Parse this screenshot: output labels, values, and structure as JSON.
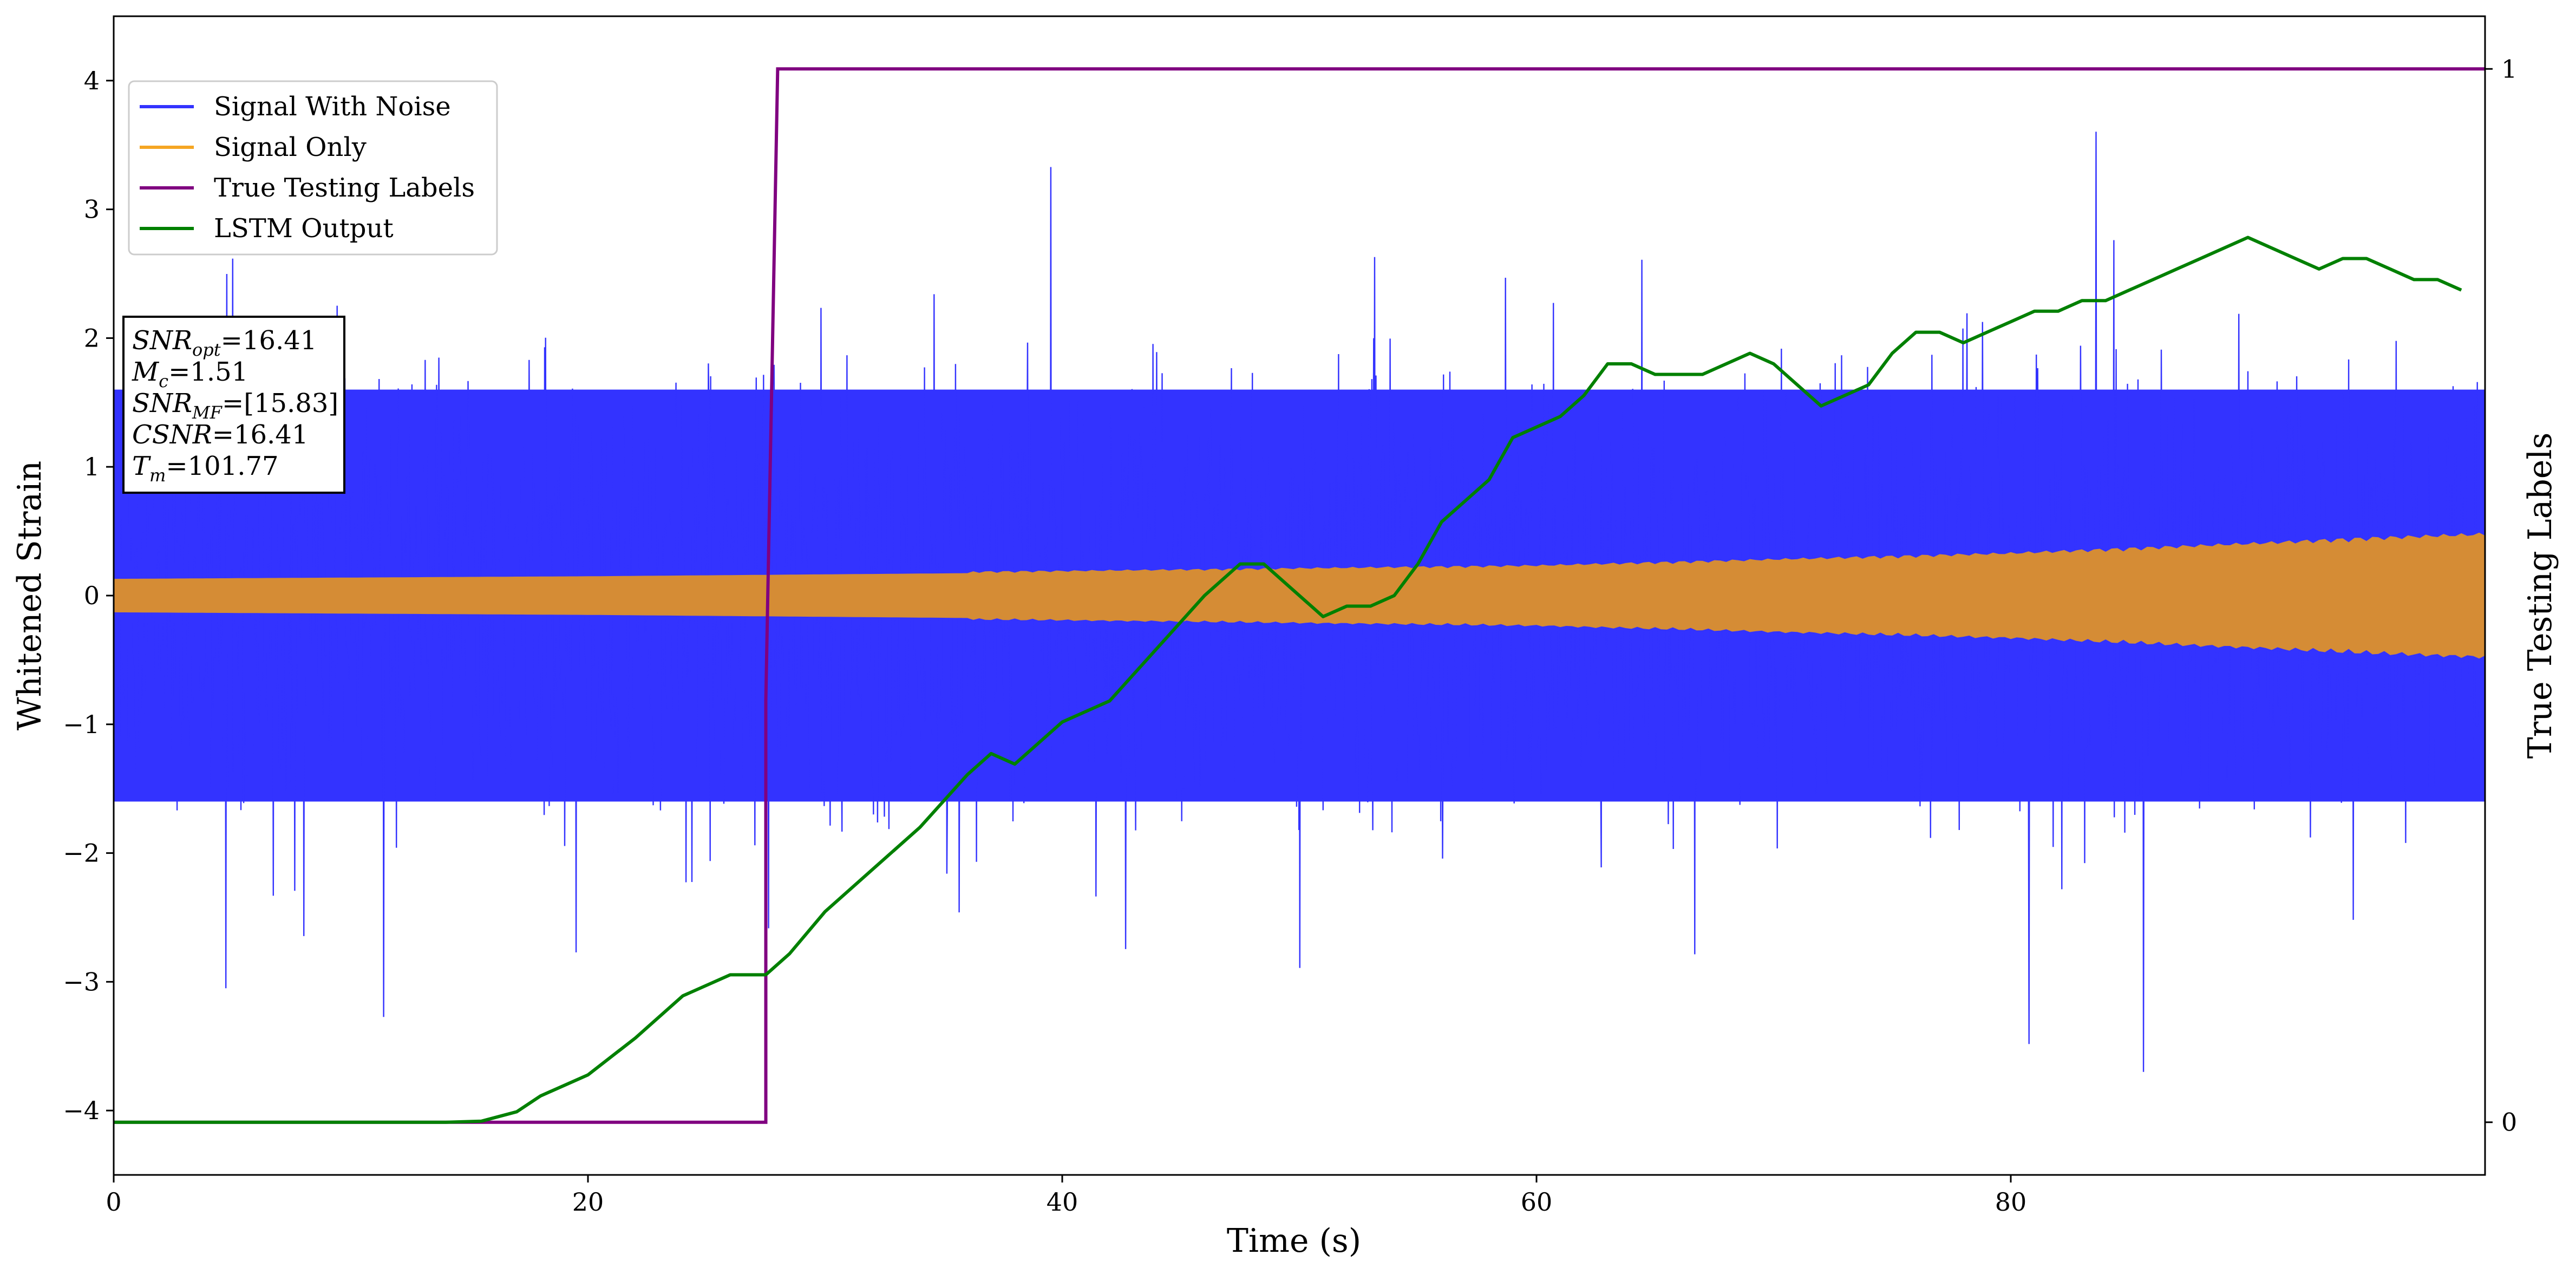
{
  "chart_data": {
    "type": "line",
    "xlabel": "Time (s)",
    "ylabel": "Whitened Strain",
    "y2label": "True Testing Labels",
    "xlim": [
      0,
      100
    ],
    "ylim": [
      -4.5,
      4.5
    ],
    "y2lim": [
      -0.05,
      1.05
    ],
    "x_ticks": [
      0,
      20,
      40,
      60,
      80
    ],
    "x_tick_labels": [
      "0",
      "20",
      "40",
      "60",
      "80"
    ],
    "y_ticks": [
      -4,
      -3,
      -2,
      -1,
      0,
      1,
      2,
      3,
      4
    ],
    "y_tick_labels": [
      "−4",
      "−3",
      "−2",
      "−1",
      "0",
      "1",
      "2",
      "3",
      "4"
    ],
    "y2_ticks": [
      0,
      1
    ],
    "y2_tick_labels": [
      "0",
      "1"
    ],
    "grid": false,
    "legend_position": "top-left",
    "series": [
      {
        "name": "Signal With Noise",
        "color": "#3333ff",
        "axis": "left",
        "style": "noise",
        "core_std": 0.55,
        "envelope_min": [
          -1.6,
          1.6
        ],
        "envelope_extremes": [
          -3.7,
          3.9
        ],
        "note_range": "approximately -3.7 to 3.9"
      },
      {
        "name": "Signal Only",
        "color": "#d58c35",
        "axis": "left",
        "style": "chirp-envelope",
        "x": [
          0,
          20,
          40,
          60,
          80,
          90,
          95,
          100
        ],
        "amplitude": [
          0.13,
          0.15,
          0.18,
          0.22,
          0.31,
          0.38,
          0.42,
          0.45
        ]
      },
      {
        "name": "True Testing Labels",
        "color": "#800080",
        "axis": "right",
        "x": [
          0,
          27.5,
          27.5,
          28.0,
          100
        ],
        "values": [
          0,
          0,
          0.4,
          1,
          1
        ]
      },
      {
        "name": "LSTM Output",
        "color": "#008000",
        "axis": "right",
        "x": [
          0,
          14,
          15.5,
          17,
          18,
          20,
          22,
          24,
          26,
          27.5,
          28.5,
          30,
          32,
          34,
          36,
          37,
          38,
          40,
          42,
          44,
          46,
          47.5,
          48.5,
          50,
          51,
          52,
          53,
          54,
          55,
          56,
          57,
          58,
          59,
          60,
          61,
          62,
          63,
          64,
          65,
          66,
          67,
          68,
          69,
          70,
          71,
          72,
          73,
          74,
          75,
          76,
          77,
          78,
          79,
          80,
          81,
          82,
          83,
          84,
          85,
          86,
          87,
          88,
          89,
          90,
          91,
          92,
          93,
          94,
          95,
          96,
          97,
          98,
          99
        ],
        "values": [
          0,
          0,
          0.001,
          0.01,
          0.025,
          0.045,
          0.08,
          0.12,
          0.14,
          0.14,
          0.16,
          0.2,
          0.24,
          0.28,
          0.33,
          0.35,
          0.34,
          0.38,
          0.4,
          0.45,
          0.5,
          0.53,
          0.53,
          0.5,
          0.48,
          0.49,
          0.49,
          0.5,
          0.53,
          0.57,
          0.59,
          0.61,
          0.65,
          0.66,
          0.67,
          0.69,
          0.72,
          0.72,
          0.71,
          0.71,
          0.71,
          0.72,
          0.73,
          0.72,
          0.7,
          0.68,
          0.69,
          0.7,
          0.73,
          0.75,
          0.75,
          0.74,
          0.75,
          0.76,
          0.77,
          0.77,
          0.78,
          0.78,
          0.79,
          0.8,
          0.81,
          0.82,
          0.83,
          0.84,
          0.83,
          0.82,
          0.81,
          0.82,
          0.82,
          0.81,
          0.8,
          0.8,
          0.79
        ]
      }
    ]
  },
  "legend": {
    "items": [
      {
        "label": "Signal With Noise",
        "color": "#3333ff"
      },
      {
        "label": "Signal Only",
        "color": "#f5a623"
      },
      {
        "label": "True Testing Labels",
        "color": "#800080"
      },
      {
        "label": "LSTM Output",
        "color": "#008000"
      }
    ]
  },
  "annotation": {
    "lines": [
      {
        "main": "SNR",
        "sub": "opt",
        "value": "=16.41"
      },
      {
        "main": "M",
        "sub": "c",
        "value": "=1.51"
      },
      {
        "main": "SNR",
        "sub": "MF",
        "value": "=[15.83]"
      },
      {
        "main": "CSNR",
        "sub": "",
        "value": "=16.41"
      },
      {
        "main": "T",
        "sub": "m",
        "value": "=101.77"
      }
    ]
  }
}
